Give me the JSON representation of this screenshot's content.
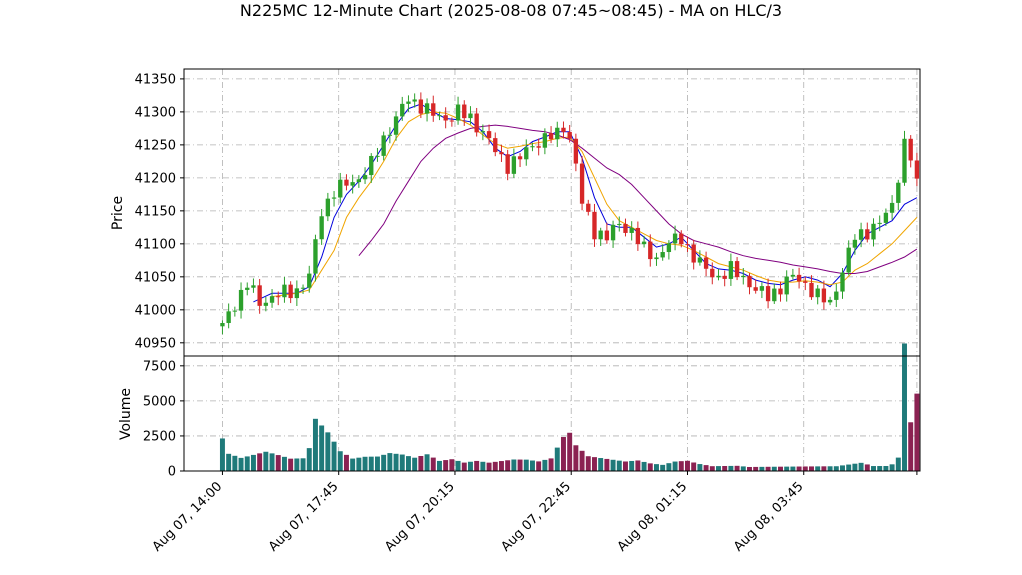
{
  "chart_data": {
    "type": "candlestick",
    "title": "N225MC 12-Minute Chart (2025-08-08 07:45~08:45) - MA on HLC/3",
    "ylabel_price": "Price",
    "ylabel_volume": "Volume",
    "price_ylim": [
      40930,
      41365
    ],
    "volume_ylim": [
      0,
      8200
    ],
    "price_yticks": [
      40950,
      41000,
      41050,
      41100,
      41150,
      41200,
      41250,
      41300,
      41350
    ],
    "volume_yticks": [
      0,
      2500,
      5000,
      7500
    ],
    "xticks": [
      {
        "label": "Aug 07, 14:00",
        "x": 0
      },
      {
        "label": "Aug 07, 17:45",
        "x": 18.75
      },
      {
        "label": "Aug 07, 20:15",
        "x": 37.5
      },
      {
        "label": "Aug 07, 22:45",
        "x": 56.25
      },
      {
        "label": "Aug 08, 01:15",
        "x": 75
      },
      {
        "label": "Aug 08, 03:45",
        "x": 93.75
      }
    ],
    "x_range": [
      -6.2,
      112.5
    ],
    "n_bars": 113,
    "grid": true,
    "colors": {
      "up": "#2ca02c",
      "down": "#d62728",
      "vol_up": "#1f7a7a",
      "vol_down": "#8b2252",
      "ma_fast": "#0000dd",
      "ma_mid": "#f0a500",
      "ma_slow": "#800080"
    },
    "close_path": [
      [
        0,
        40975
      ],
      [
        2,
        41010
      ],
      [
        4,
        41040
      ],
      [
        6,
        41010
      ],
      [
        8,
        41020
      ],
      [
        10,
        41025
      ],
      [
        12,
        41030
      ],
      [
        14,
        41050
      ],
      [
        16,
        41150
      ],
      [
        18,
        41180
      ],
      [
        20,
        41190
      ],
      [
        22,
        41200
      ],
      [
        24,
        41220
      ],
      [
        26,
        41260
      ],
      [
        28,
        41290
      ],
      [
        30,
        41320
      ],
      [
        32,
        41310
      ],
      [
        34,
        41295
      ],
      [
        36,
        41290
      ],
      [
        38,
        41300
      ],
      [
        40,
        41290
      ],
      [
        42,
        41270
      ],
      [
        44,
        41240
      ],
      [
        46,
        41220
      ],
      [
        48,
        41230
      ],
      [
        50,
        41250
      ],
      [
        52,
        41260
      ],
      [
        54,
        41265
      ],
      [
        55,
        41280
      ],
      [
        56,
        41260
      ],
      [
        57,
        41220
      ],
      [
        58,
        41160
      ],
      [
        60,
        41120
      ],
      [
        62,
        41110
      ],
      [
        64,
        41130
      ],
      [
        66,
        41120
      ],
      [
        68,
        41090
      ],
      [
        70,
        41080
      ],
      [
        72,
        41100
      ],
      [
        74,
        41110
      ],
      [
        76,
        41080
      ],
      [
        78,
        41060
      ],
      [
        80,
        41050
      ],
      [
        82,
        41060
      ],
      [
        84,
        41050
      ],
      [
        86,
        41030
      ],
      [
        88,
        41020
      ],
      [
        90,
        41035
      ],
      [
        92,
        41050
      ],
      [
        94,
        41040
      ],
      [
        96,
        41020
      ],
      [
        98,
        41010
      ],
      [
        100,
        41060
      ],
      [
        102,
        41110
      ],
      [
        104,
        41120
      ],
      [
        106,
        41130
      ],
      [
        108,
        41160
      ],
      [
        110,
        41250
      ],
      [
        111,
        41230
      ],
      [
        112,
        41190
      ]
    ],
    "vol_path": [
      [
        0,
        2900
      ],
      [
        1,
        1500
      ],
      [
        3,
        1100
      ],
      [
        5,
        1300
      ],
      [
        7,
        1500
      ],
      [
        9,
        1200
      ],
      [
        11,
        900
      ],
      [
        13,
        900
      ],
      [
        14,
        1600
      ],
      [
        15,
        3600
      ],
      [
        17,
        2600
      ],
      [
        19,
        1300
      ],
      [
        21,
        800
      ],
      [
        23,
        900
      ],
      [
        25,
        900
      ],
      [
        27,
        1100
      ],
      [
        29,
        1000
      ],
      [
        31,
        800
      ],
      [
        33,
        1000
      ],
      [
        35,
        600
      ],
      [
        37,
        700
      ],
      [
        39,
        500
      ],
      [
        41,
        600
      ],
      [
        43,
        500
      ],
      [
        45,
        600
      ],
      [
        47,
        700
      ],
      [
        49,
        700
      ],
      [
        51,
        600
      ],
      [
        53,
        800
      ],
      [
        55,
        2200
      ],
      [
        56,
        2500
      ],
      [
        57,
        1700
      ],
      [
        59,
        1000
      ],
      [
        61,
        900
      ],
      [
        63,
        800
      ],
      [
        65,
        700
      ],
      [
        67,
        800
      ],
      [
        69,
        600
      ],
      [
        71,
        500
      ],
      [
        73,
        800
      ],
      [
        75,
        900
      ],
      [
        77,
        600
      ],
      [
        79,
        400
      ],
      [
        81,
        400
      ],
      [
        83,
        400
      ],
      [
        85,
        300
      ],
      [
        87,
        300
      ],
      [
        89,
        300
      ],
      [
        91,
        300
      ],
      [
        93,
        300
      ],
      [
        95,
        300
      ],
      [
        97,
        300
      ],
      [
        99,
        300
      ],
      [
        101,
        400
      ],
      [
        103,
        500
      ],
      [
        105,
        300
      ],
      [
        107,
        300
      ],
      [
        108,
        400
      ],
      [
        109,
        800
      ],
      [
        110,
        7600
      ],
      [
        111,
        2900
      ],
      [
        112,
        4600
      ]
    ],
    "ma_fast": [
      [
        5,
        41012
      ],
      [
        8,
        41025
      ],
      [
        12,
        41025
      ],
      [
        14,
        41035
      ],
      [
        16,
        41080
      ],
      [
        18,
        41140
      ],
      [
        20,
        41175
      ],
      [
        22,
        41195
      ],
      [
        24,
        41220
      ],
      [
        26,
        41250
      ],
      [
        28,
        41280
      ],
      [
        30,
        41305
      ],
      [
        32,
        41312
      ],
      [
        34,
        41300
      ],
      [
        36,
        41290
      ],
      [
        38,
        41288
      ],
      [
        40,
        41285
      ],
      [
        42,
        41270
      ],
      [
        44,
        41245
      ],
      [
        46,
        41232
      ],
      [
        48,
        41240
      ],
      [
        50,
        41255
      ],
      [
        52,
        41262
      ],
      [
        54,
        41270
      ],
      [
        56,
        41270
      ],
      [
        58,
        41230
      ],
      [
        60,
        41170
      ],
      [
        62,
        41130
      ],
      [
        64,
        41125
      ],
      [
        66,
        41125
      ],
      [
        68,
        41110
      ],
      [
        70,
        41095
      ],
      [
        72,
        41100
      ],
      [
        74,
        41110
      ],
      [
        76,
        41090
      ],
      [
        78,
        41070
      ],
      [
        80,
        41062
      ],
      [
        82,
        41060
      ],
      [
        84,
        41055
      ],
      [
        86,
        41045
      ],
      [
        88,
        41040
      ],
      [
        90,
        41038
      ],
      [
        92,
        41045
      ],
      [
        94,
        41050
      ],
      [
        96,
        41045
      ],
      [
        98,
        41035
      ],
      [
        100,
        41055
      ],
      [
        102,
        41090
      ],
      [
        104,
        41115
      ],
      [
        106,
        41125
      ],
      [
        108,
        41135
      ],
      [
        110,
        41160
      ],
      [
        112,
        41170
      ]
    ],
    "ma_mid": [
      [
        8,
        41020
      ],
      [
        12,
        41025
      ],
      [
        14,
        41030
      ],
      [
        16,
        41060
      ],
      [
        18,
        41090
      ],
      [
        20,
        41140
      ],
      [
        22,
        41170
      ],
      [
        24,
        41195
      ],
      [
        26,
        41225
      ],
      [
        28,
        41260
      ],
      [
        30,
        41285
      ],
      [
        32,
        41296
      ],
      [
        34,
        41300
      ],
      [
        36,
        41298
      ],
      [
        38,
        41290
      ],
      [
        40,
        41280
      ],
      [
        42,
        41265
      ],
      [
        44,
        41252
      ],
      [
        46,
        41245
      ],
      [
        48,
        41248
      ],
      [
        50,
        41252
      ],
      [
        52,
        41255
      ],
      [
        54,
        41260
      ],
      [
        56,
        41262
      ],
      [
        58,
        41240
      ],
      [
        60,
        41200
      ],
      [
        62,
        41160
      ],
      [
        64,
        41135
      ],
      [
        66,
        41125
      ],
      [
        68,
        41115
      ],
      [
        70,
        41105
      ],
      [
        72,
        41100
      ],
      [
        74,
        41098
      ],
      [
        76,
        41090
      ],
      [
        78,
        41080
      ],
      [
        80,
        41070
      ],
      [
        82,
        41065
      ],
      [
        84,
        41060
      ],
      [
        86,
        41052
      ],
      [
        88,
        41045
      ],
      [
        90,
        41042
      ],
      [
        92,
        41042
      ],
      [
        94,
        41044
      ],
      [
        96,
        41042
      ],
      [
        98,
        41038
      ],
      [
        100,
        41042
      ],
      [
        102,
        41060
      ],
      [
        104,
        41070
      ],
      [
        106,
        41085
      ],
      [
        108,
        41100
      ],
      [
        110,
        41120
      ],
      [
        112,
        41140
      ]
    ],
    "ma_slow": [
      [
        22,
        41082
      ],
      [
        24,
        41105
      ],
      [
        26,
        41130
      ],
      [
        28,
        41165
      ],
      [
        30,
        41195
      ],
      [
        32,
        41225
      ],
      [
        34,
        41245
      ],
      [
        36,
        41260
      ],
      [
        38,
        41268
      ],
      [
        40,
        41275
      ],
      [
        42,
        41278
      ],
      [
        44,
        41280
      ],
      [
        46,
        41278
      ],
      [
        48,
        41275
      ],
      [
        50,
        41272
      ],
      [
        52,
        41270
      ],
      [
        54,
        41265
      ],
      [
        56,
        41258
      ],
      [
        58,
        41245
      ],
      [
        60,
        41230
      ],
      [
        62,
        41215
      ],
      [
        64,
        41205
      ],
      [
        66,
        41190
      ],
      [
        68,
        41170
      ],
      [
        70,
        41150
      ],
      [
        72,
        41130
      ],
      [
        74,
        41115
      ],
      [
        76,
        41105
      ],
      [
        78,
        41100
      ],
      [
        80,
        41095
      ],
      [
        82,
        41088
      ],
      [
        84,
        41082
      ],
      [
        86,
        41078
      ],
      [
        88,
        41075
      ],
      [
        90,
        41072
      ],
      [
        92,
        41068
      ],
      [
        94,
        41065
      ],
      [
        96,
        41062
      ],
      [
        98,
        41058
      ],
      [
        100,
        41055
      ],
      [
        102,
        41055
      ],
      [
        104,
        41058
      ],
      [
        106,
        41065
      ],
      [
        108,
        41072
      ],
      [
        110,
        41080
      ],
      [
        112,
        41092
      ]
    ]
  }
}
